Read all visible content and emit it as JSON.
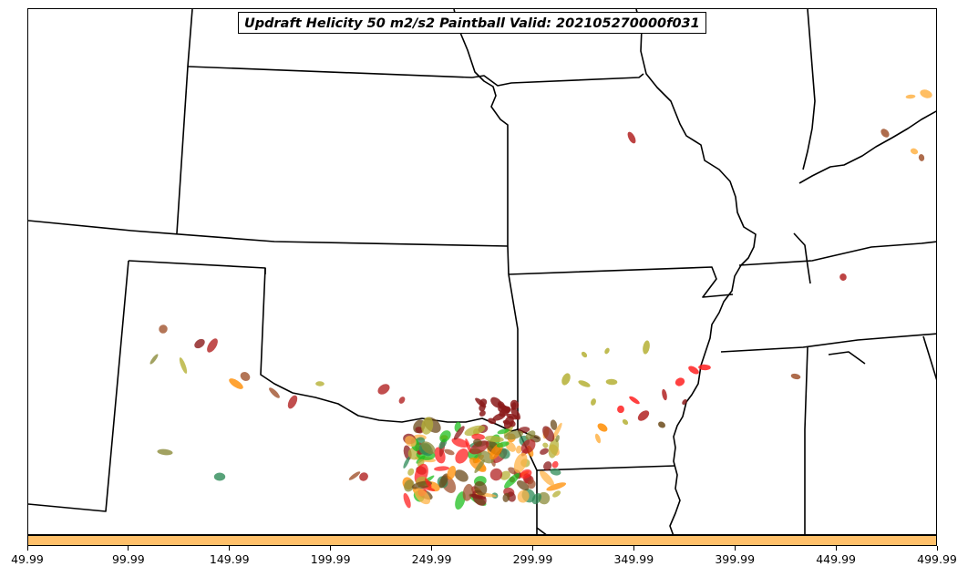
{
  "title": "Updraft Helicity 50 m2/s2 Paintball Valid: 202105270000f031",
  "colorbar": {
    "color": "#ffc06a",
    "tick_labels": [
      "49.99",
      "99.99",
      "149.99",
      "199.99",
      "249.99",
      "299.99",
      "349.99",
      "399.99",
      "449.99",
      "499.99"
    ]
  },
  "map": {
    "border_color": "#000000",
    "paintball_colors": [
      "#8b1a1a",
      "#b22222",
      "#ff2020",
      "#ff8c00",
      "#ffb347",
      "#1fbf1f",
      "#2e8b57",
      "#b5b035",
      "#8b8b3a",
      "#6b4a1a",
      "#a0522d"
    ]
  }
}
